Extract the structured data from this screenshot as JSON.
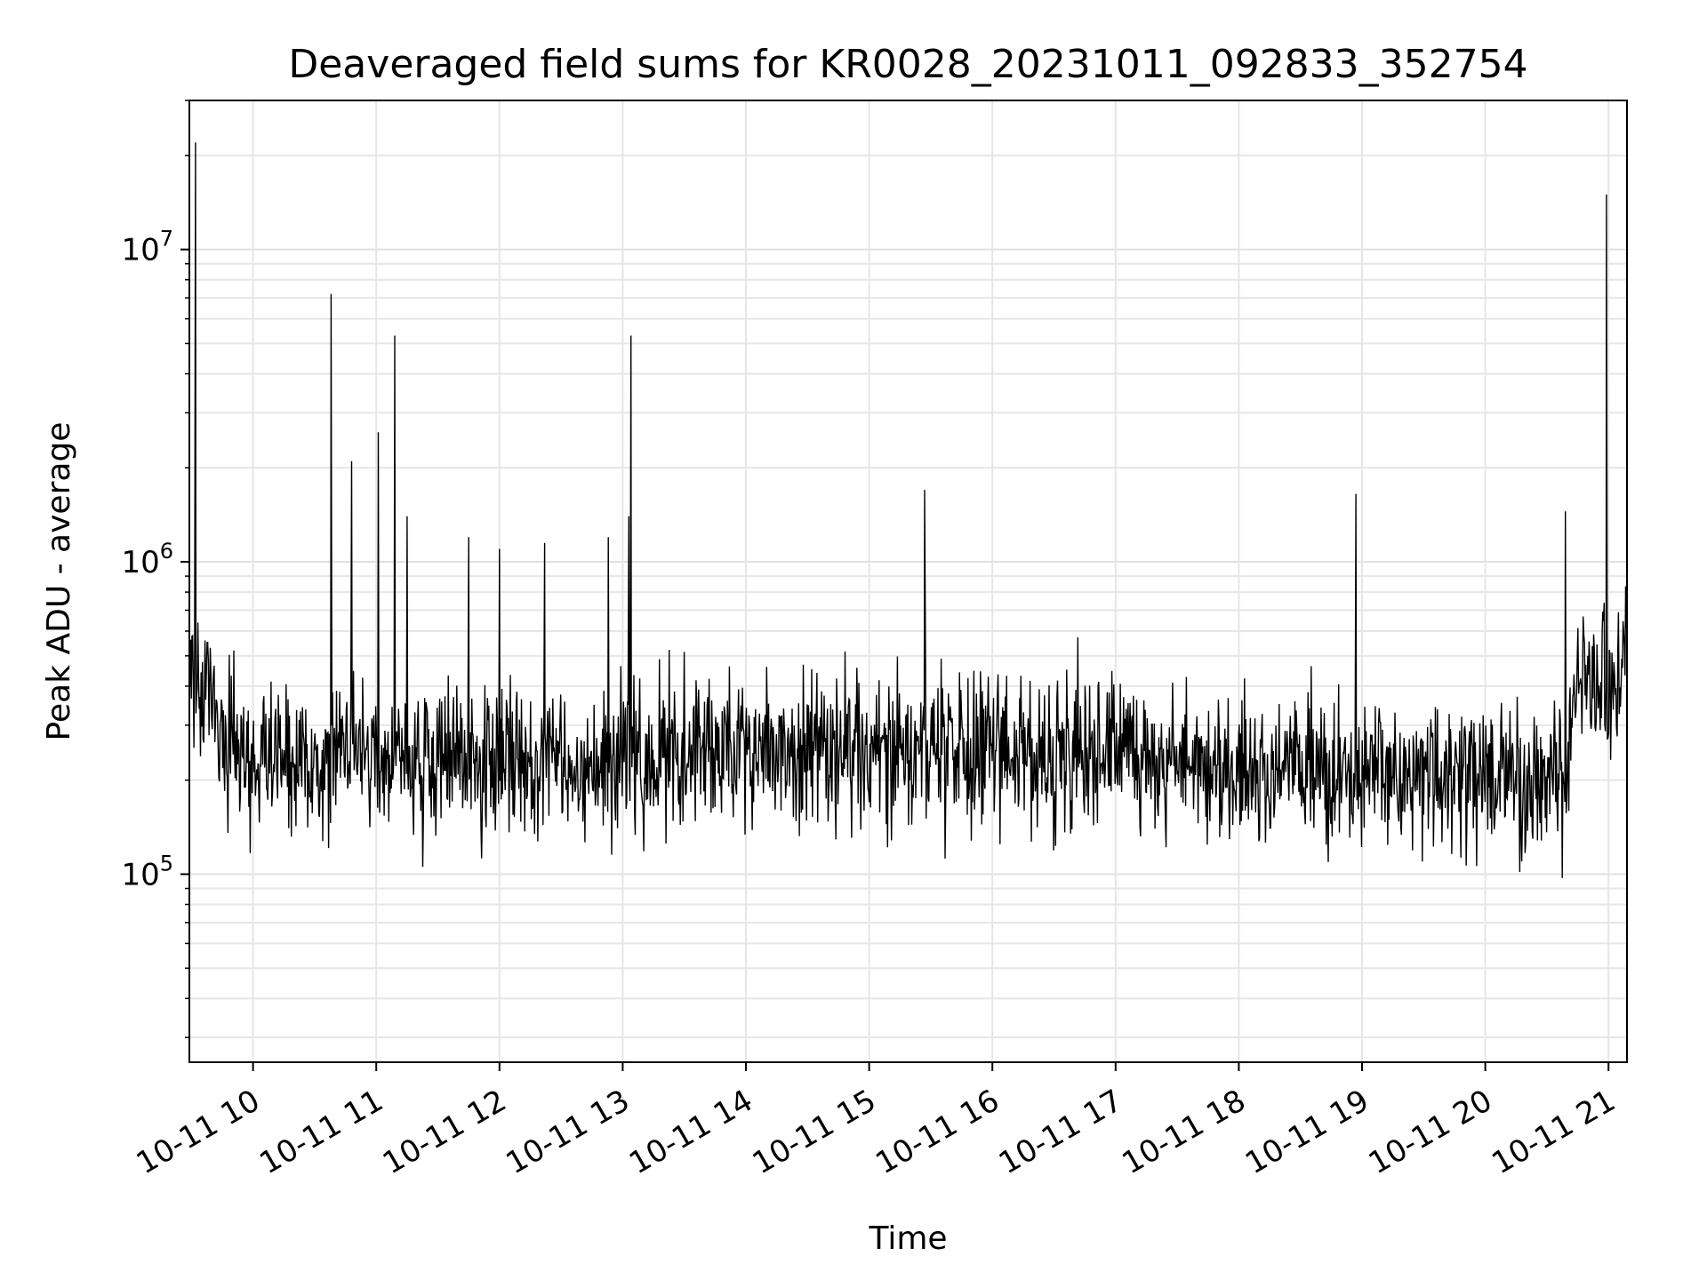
{
  "chart_data": {
    "type": "line",
    "title": "Deaveraged field sums for KR0028_20231011_092833_352754",
    "xlabel": "Time",
    "ylabel": "Peak ADU - average",
    "x_start": "2023-10-11 09:29",
    "x_end": "2023-10-11 21:09",
    "xlim": [
      "2023-10-11 09:29",
      "2023-10-11 21:09"
    ],
    "x_tick_labels": [
      "10-11 10",
      "10-11 11",
      "10-11 12",
      "10-11 13",
      "10-11 14",
      "10-11 15",
      "10-11 16",
      "10-11 17",
      "10-11 18",
      "10-11 19",
      "10-11 20",
      "10-11 21"
    ],
    "y_scale": "log",
    "ylim": [
      25000,
      30000000
    ],
    "y_ticks": [
      100000,
      1000000,
      10000000
    ],
    "y_tick_labels": [
      {
        "base": "10",
        "exp": "5"
      },
      {
        "base": "10",
        "exp": "6"
      },
      {
        "base": "10",
        "exp": "7"
      }
    ],
    "grid": true,
    "baseline_profile": [
      {
        "x": "2023-10-11 09:29",
        "y": 500000
      },
      {
        "x": "2023-10-11 09:40",
        "y": 300000
      },
      {
        "x": "2023-10-11 10:00",
        "y": 230000
      },
      {
        "x": "2023-10-11 11:00",
        "y": 225000
      },
      {
        "x": "2023-10-11 13:00",
        "y": 240000
      },
      {
        "x": "2023-10-11 16:00",
        "y": 260000
      },
      {
        "x": "2023-10-11 18:00",
        "y": 220000
      },
      {
        "x": "2023-10-11 20:00",
        "y": 210000
      },
      {
        "x": "2023-10-11 20:40",
        "y": 200000
      },
      {
        "x": "2023-10-11 20:45",
        "y": 380000
      },
      {
        "x": "2023-10-11 21:09",
        "y": 420000
      }
    ],
    "spikes": [
      {
        "x": "2023-10-11 09:32",
        "y": 22000000
      },
      {
        "x": "2023-10-11 10:38",
        "y": 7200000
      },
      {
        "x": "2023-10-11 10:48",
        "y": 2100000
      },
      {
        "x": "2023-10-11 11:01",
        "y": 2600000
      },
      {
        "x": "2023-10-11 11:09",
        "y": 5300000
      },
      {
        "x": "2023-10-11 11:15",
        "y": 1400000
      },
      {
        "x": "2023-10-11 11:45",
        "y": 1200000
      },
      {
        "x": "2023-10-11 12:00",
        "y": 1100000
      },
      {
        "x": "2023-10-11 12:22",
        "y": 1150000
      },
      {
        "x": "2023-10-11 12:53",
        "y": 1200000
      },
      {
        "x": "2023-10-11 13:03",
        "y": 1400000
      },
      {
        "x": "2023-10-11 13:04",
        "y": 5300000
      },
      {
        "x": "2023-10-11 15:27",
        "y": 1700000
      },
      {
        "x": "2023-10-11 18:57",
        "y": 1650000
      },
      {
        "x": "2023-10-11 20:39",
        "y": 1450000
      },
      {
        "x": "2023-10-11 20:59",
        "y": 15000000
      }
    ]
  }
}
